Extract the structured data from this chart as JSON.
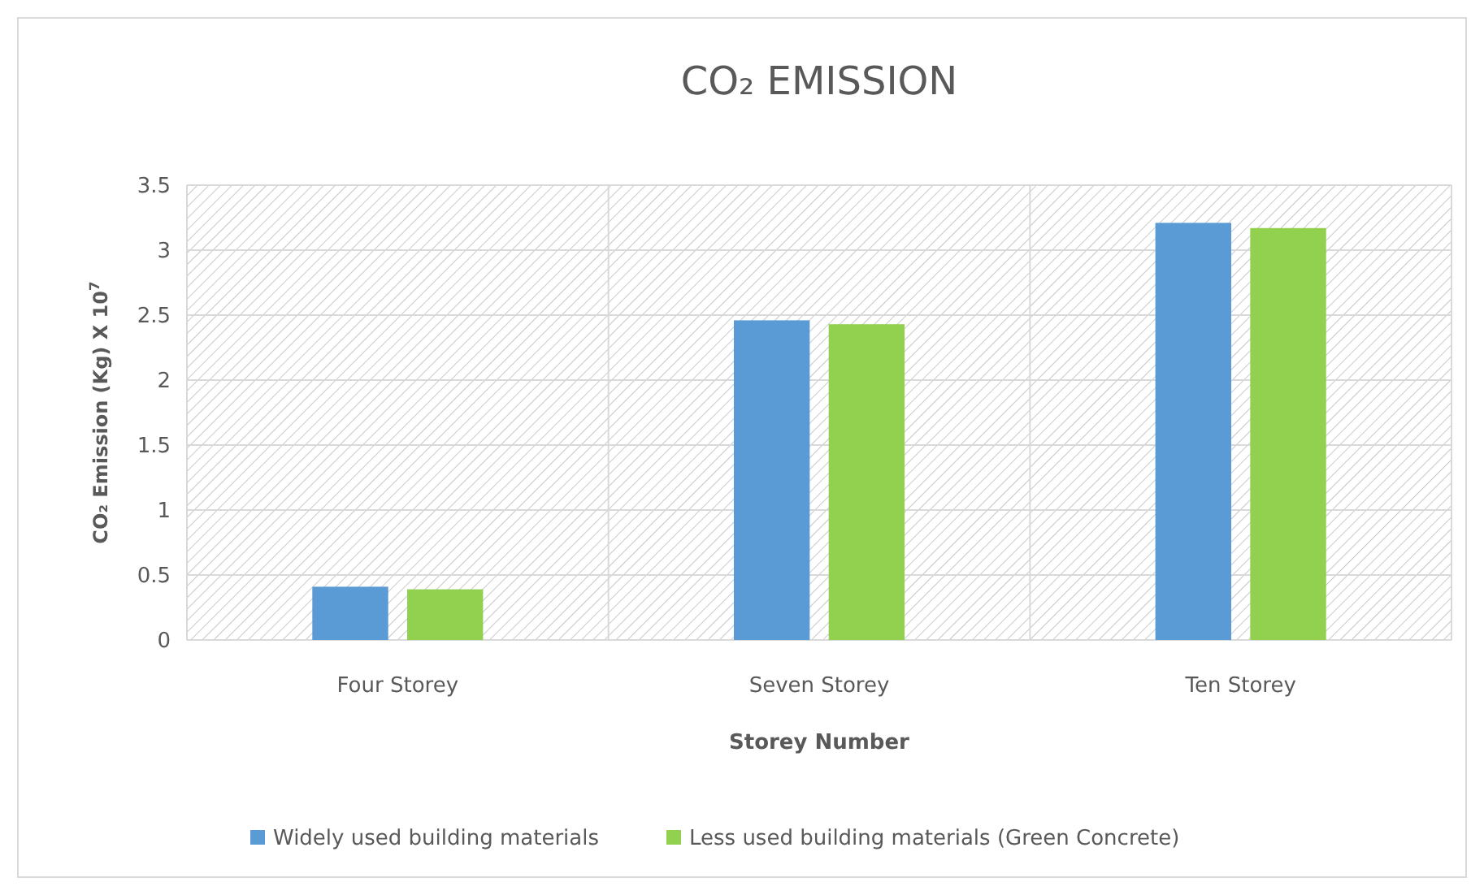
{
  "chart_data": {
    "type": "bar",
    "title": "CO₂ EMISSION",
    "xlabel": "Storey Number",
    "ylabel": "CO₂ Emission (Kg) X 10$^{7}$",
    "categories": [
      "Four Storey",
      "Seven Storey",
      "Ten Storey"
    ],
    "series": [
      {
        "name": "Widely used building materials",
        "color": "#5b9bd5",
        "values": [
          0.41,
          2.46,
          3.21
        ]
      },
      {
        "name": "Less used building materials (Green Concrete)",
        "color": "#92d050",
        "values": [
          0.39,
          2.43,
          3.17
        ]
      }
    ],
    "ylim": [
      0,
      3.5
    ],
    "yticks": [
      0,
      {
        "value": 0.5,
        "label": "0.5"
      },
      1,
      {
        "value": 1.5,
        "label": "1.5"
      },
      2,
      {
        "value": 2.5,
        "label": "2.5"
      },
      3,
      {
        "value": 3.5,
        "label": "3.5"
      }
    ],
    "grid": true,
    "legend": "bottom"
  }
}
